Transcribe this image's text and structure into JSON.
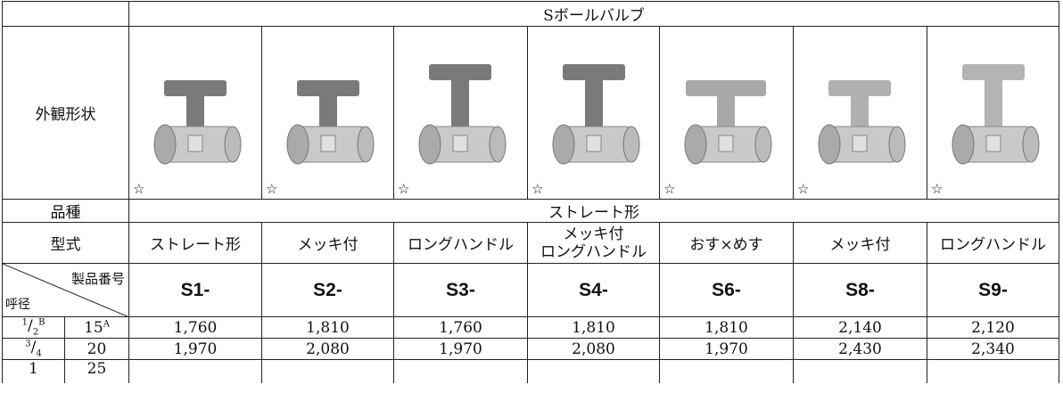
{
  "header": {
    "title": "Sボールバルブ"
  },
  "appearance_label": "外観形状",
  "image_marks": [
    "☆",
    "☆",
    "☆",
    "☆",
    "☆",
    "☆",
    "☆"
  ],
  "variety": {
    "label": "品種",
    "value": "ストレート形"
  },
  "model": {
    "label": "型式",
    "values": [
      [
        "ストレート形"
      ],
      [
        "メッキ付"
      ],
      [
        "ロングハンドル"
      ],
      [
        "メッキ付",
        "ロングハンドル"
      ],
      [
        "おす×めす"
      ],
      [
        "メッキ付"
      ],
      [
        "ロングハンドル"
      ]
    ]
  },
  "product_number": {
    "label": "製品番号",
    "size_label": "呼径",
    "codes": [
      "S1-",
      "S2-",
      "S3-",
      "S4-",
      "S6-",
      "S8-",
      "S9-"
    ]
  },
  "rows": [
    {
      "inch": {
        "num": "1",
        "den": "2",
        "unit": "B"
      },
      "mm": {
        "value": "15",
        "unit": "A"
      },
      "prices": [
        "1,760",
        "1,810",
        "1,760",
        "1,810",
        "1,810",
        "2,140",
        "2,120"
      ]
    },
    {
      "inch": {
        "num": "3",
        "den": "4"
      },
      "mm": {
        "value": "20"
      },
      "prices": [
        "1,970",
        "2,080",
        "1,970",
        "2,080",
        "1,970",
        "2,430",
        "2,340"
      ]
    },
    {
      "inch": {
        "whole": "1"
      },
      "mm": {
        "value": "25"
      },
      "prices": []
    }
  ]
}
